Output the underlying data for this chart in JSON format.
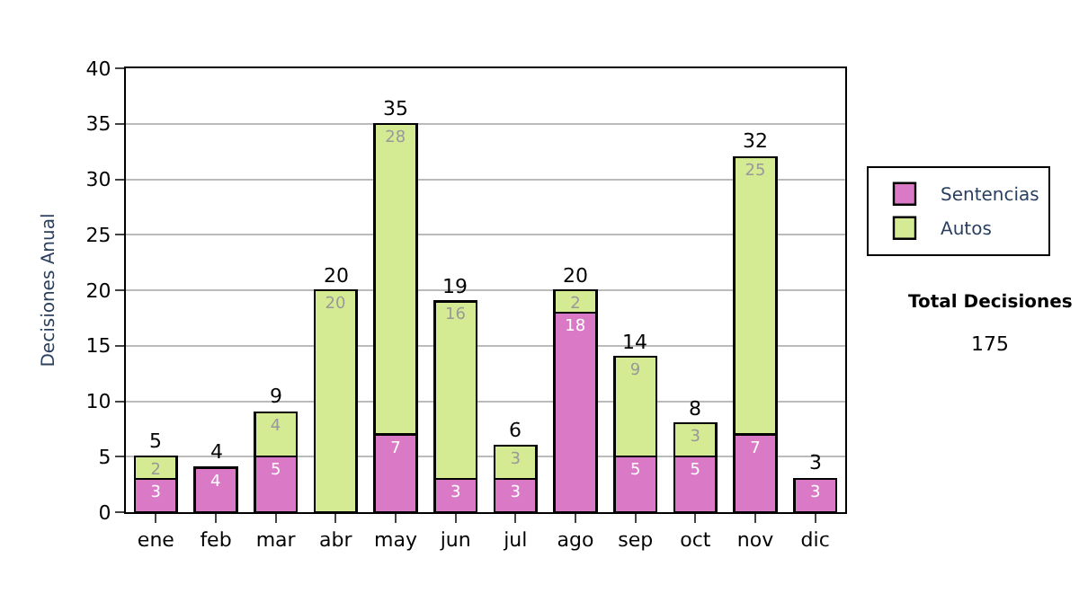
{
  "chart_data": {
    "type": "bar",
    "stacked": true,
    "ylabel": "Decisiones Anual",
    "categories": [
      "ene",
      "feb",
      "mar",
      "abr",
      "may",
      "jun",
      "jul",
      "ago",
      "sep",
      "oct",
      "nov",
      "dic"
    ],
    "series": [
      {
        "name": "Sentencias",
        "color": "#da7ac6",
        "values": [
          3,
          4,
          5,
          0,
          7,
          3,
          3,
          18,
          5,
          5,
          7,
          3
        ],
        "value_labels": [
          "3",
          "4",
          "5",
          null,
          "7",
          "3",
          "3",
          "18",
          "5",
          "5",
          "7",
          "3"
        ]
      },
      {
        "name": "Autos",
        "color": "#d4eb94",
        "values": [
          2,
          0,
          4,
          20,
          28,
          16,
          3,
          2,
          9,
          3,
          25,
          0
        ],
        "value_labels": [
          "2",
          null,
          "4",
          "20",
          "28",
          "16",
          "3",
          "2",
          "9",
          "3",
          "25",
          null
        ]
      }
    ],
    "totals": [
      "5",
      "4",
      "9",
      "20",
      "35",
      "19",
      "6",
      "20",
      "14",
      "8",
      "32",
      "3"
    ],
    "ylim": [
      0,
      40
    ],
    "yticks": [
      0,
      5,
      10,
      15,
      20,
      25,
      30,
      35,
      40
    ],
    "grid": "y",
    "legend": "right",
    "annotations": [
      "Total Decisiones",
      "175"
    ]
  }
}
